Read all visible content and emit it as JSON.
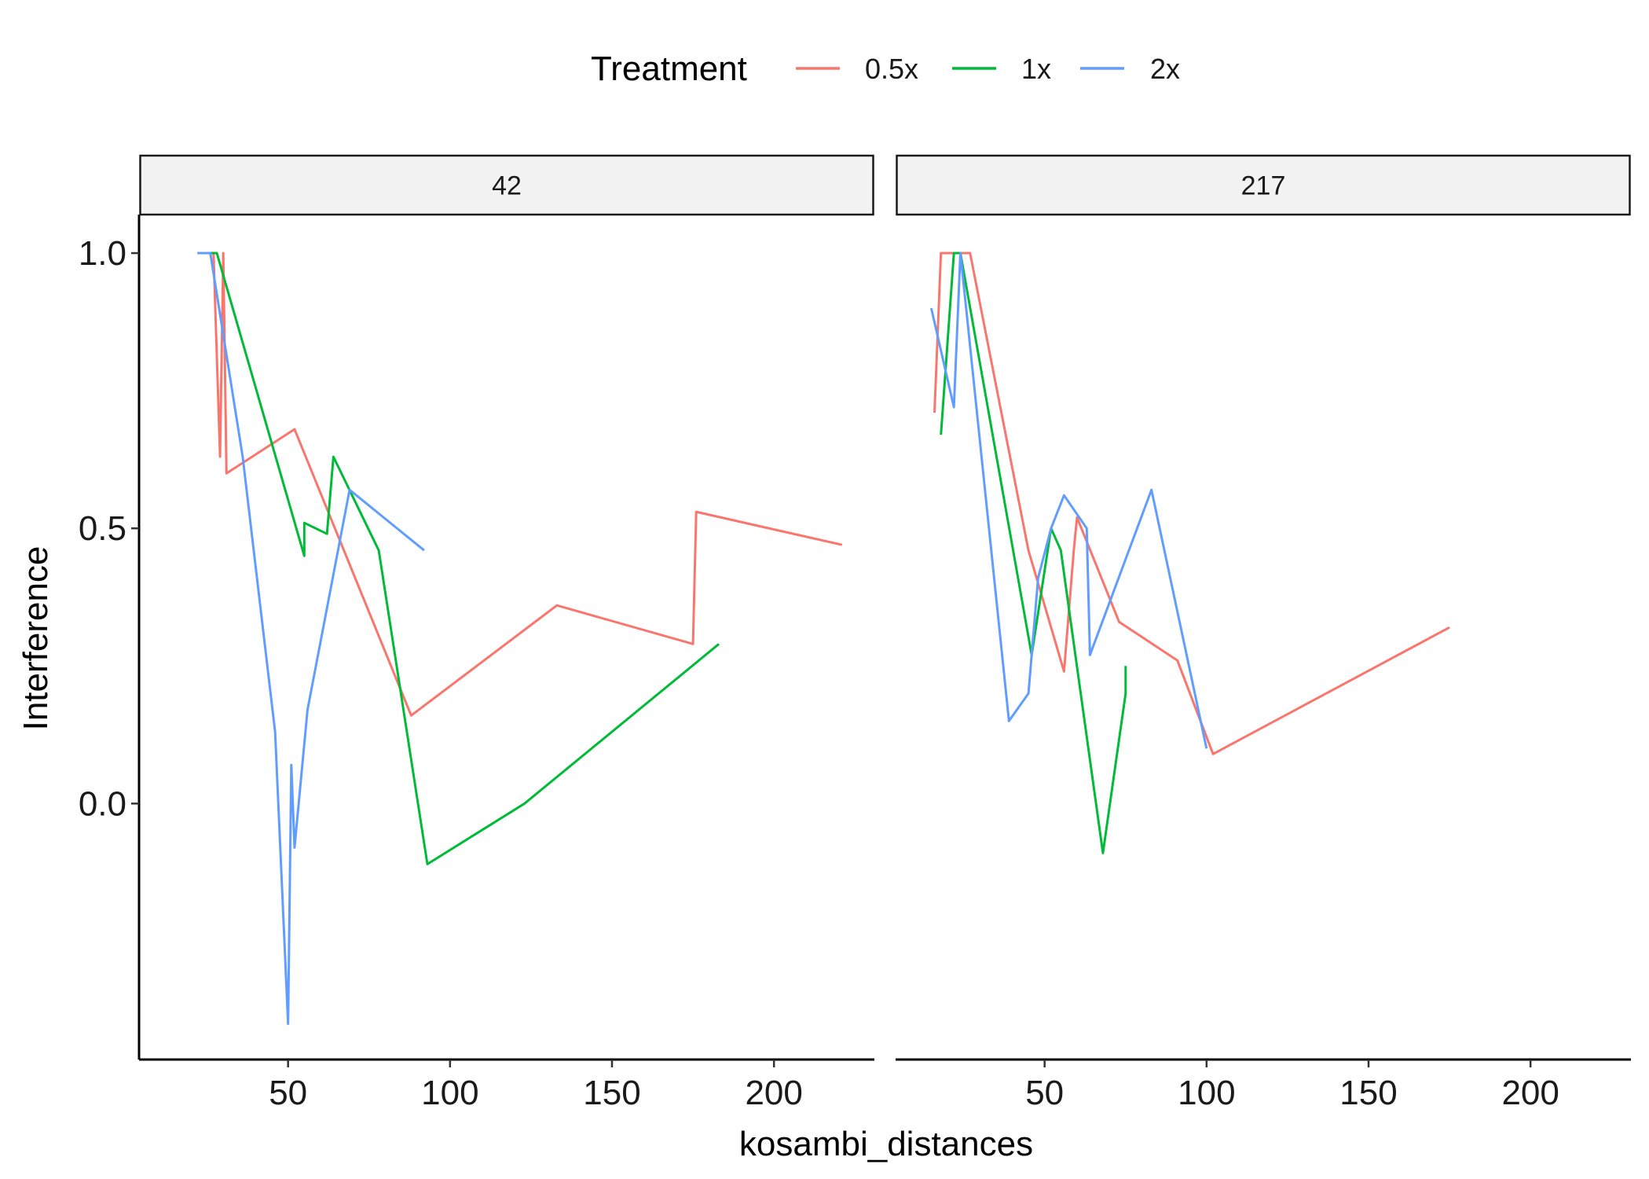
{
  "chart_data": {
    "type": "line",
    "xlabel": "kosambi_distances",
    "ylabel": "Interference",
    "legend": {
      "title": "Treatment",
      "position": "top"
    },
    "grid": false,
    "xlim": [
      4,
      231
    ],
    "ylim": [
      -0.465,
      1.07
    ],
    "xticks": [
      50,
      100,
      150,
      200
    ],
    "yticks": [
      0.0,
      0.5,
      1.0
    ],
    "ytick_labels": [
      "0.0",
      "0.5",
      "1.0"
    ],
    "colors": {
      "0.5x": "#F8766D",
      "1x": "#00BA38",
      "2x": "#619CFF"
    },
    "panels": [
      {
        "label": "42",
        "series": [
          {
            "name": "0.5x",
            "x": [
              27,
              29,
              30,
              31,
              52,
              88,
              133,
              175,
              176,
              221
            ],
            "y": [
              1.0,
              0.63,
              1.0,
              0.6,
              0.68,
              0.16,
              0.36,
              0.29,
              0.53,
              0.47
            ]
          },
          {
            "name": "1x",
            "x": [
              26,
              28,
              55,
              55,
              62,
              64,
              78,
              93,
              123,
              183
            ],
            "y": [
              1.0,
              1.0,
              0.45,
              0.51,
              0.49,
              0.63,
              0.46,
              -0.11,
              0.0,
              0.29
            ]
          },
          {
            "name": "2x",
            "x": [
              22,
              26,
              36,
              46,
              50,
              51,
              52,
              56,
              69,
              92
            ],
            "y": [
              1.0,
              1.0,
              0.63,
              0.13,
              -0.4,
              0.07,
              -0.08,
              0.17,
              0.57,
              0.46
            ]
          }
        ]
      },
      {
        "label": "217",
        "series": [
          {
            "name": "0.5x",
            "x": [
              16,
              18,
              27,
              45,
              56,
              59,
              60,
              73,
              91,
              102,
              175
            ],
            "y": [
              0.71,
              1.0,
              1.0,
              0.46,
              0.24,
              0.46,
              0.52,
              0.33,
              0.26,
              0.09,
              0.32
            ]
          },
          {
            "name": "1x",
            "x": [
              18,
              22,
              24,
              46,
              52,
              55,
              68,
              75,
              75
            ],
            "y": [
              0.67,
              1.0,
              1.0,
              0.27,
              0.5,
              0.46,
              -0.09,
              0.2,
              0.25
            ]
          },
          {
            "name": "2x",
            "x": [
              15,
              22,
              24,
              39,
              45,
              48,
              52,
              56,
              63,
              64,
              83,
              100
            ],
            "y": [
              0.9,
              0.72,
              1.0,
              0.15,
              0.2,
              0.41,
              0.5,
              0.56,
              0.5,
              0.27,
              0.57,
              0.1
            ]
          }
        ]
      }
    ]
  }
}
